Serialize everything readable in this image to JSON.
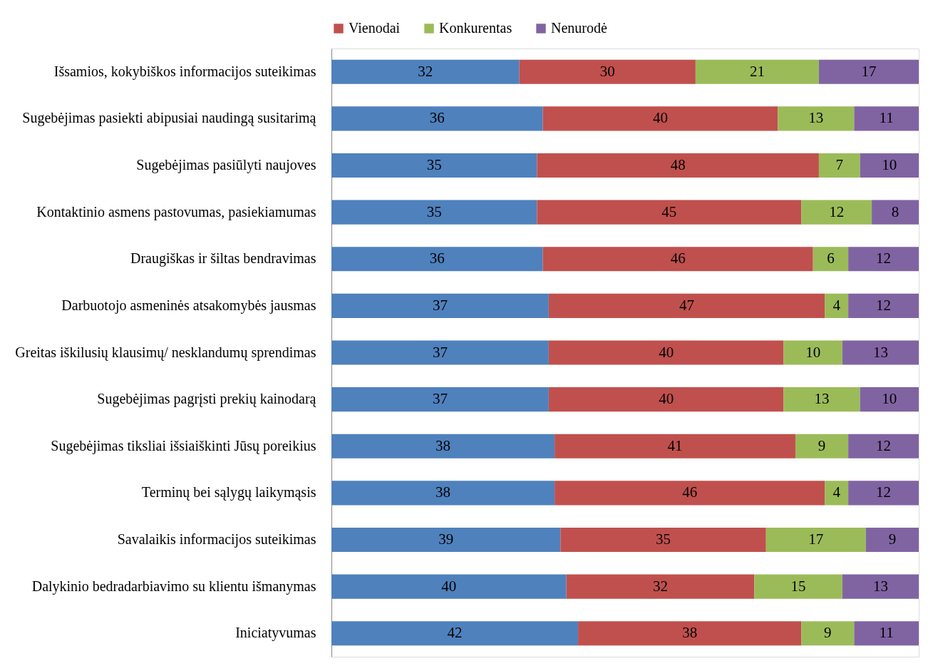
{
  "chart_data": {
    "type": "bar",
    "orientation": "horizontal",
    "stacked": true,
    "data_labels": true,
    "legend": "top",
    "grid": false,
    "tick_labels": "y",
    "categories": [
      "Išsamios, kokybiškos informacijos suteikimas",
      "Sugebėjimas pasiekti abipusiai naudingą susitarimą",
      "Sugebėjimas pasiūlyti naujoves",
      "Kontaktinio asmens pastovumas, pasiekiamumas",
      "Draugiškas ir šiltas bendravimas",
      "Darbuotojo asmeninės atsakomybės jausmas",
      "Greitas iškilusių klausimų/ nesklandumų sprendimas",
      "Sugebėjimas pagrįsti prekių kainodarą",
      "Sugebėjimas tiksliai išsiaiškinti Jūsų poreikius",
      "Terminų bei sąlygų laikymąsis",
      "Savalaikis informacijos suteikimas",
      "Dalykinio bedradarbiavimo su klientu išmanymas",
      "Iniciatyvumas"
    ],
    "series": [
      {
        "color": "#4f81bd",
        "values": [
          32,
          36,
          35,
          35,
          36,
          37,
          37,
          37,
          38,
          38,
          39,
          40,
          42
        ]
      },
      {
        "name": "Vienodai",
        "color": "#c0504d",
        "values": [
          30,
          40,
          48,
          45,
          46,
          47,
          40,
          40,
          41,
          46,
          35,
          32,
          38
        ]
      },
      {
        "name": "Konkurentas",
        "color": "#9bbb59",
        "values": [
          21,
          13,
          7,
          12,
          6,
          4,
          10,
          13,
          9,
          4,
          17,
          15,
          9
        ]
      },
      {
        "name": "Nenurodė",
        "color": "#8064a2",
        "values": [
          17,
          11,
          10,
          8,
          12,
          12,
          13,
          10,
          12,
          12,
          9,
          13,
          11
        ]
      }
    ]
  }
}
